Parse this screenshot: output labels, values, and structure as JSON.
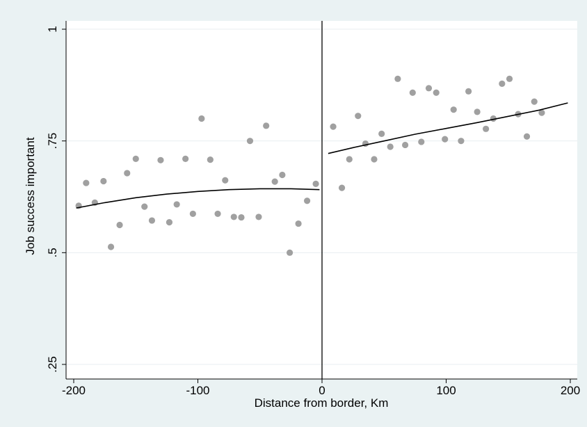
{
  "chart_data": {
    "type": "scatter",
    "title": "",
    "xlabel": "Distance from border, Km",
    "ylabel": "Job success important",
    "xlim": [
      -200,
      200
    ],
    "ylim": [
      0.25,
      1
    ],
    "x_ticks": [
      {
        "value": -200,
        "label": "-200"
      },
      {
        "value": -100,
        "label": "-100"
      },
      {
        "value": 0,
        "label": "0"
      },
      {
        "value": 100,
        "label": "100"
      },
      {
        "value": 200,
        "label": "200"
      }
    ],
    "y_ticks": [
      {
        "value": 0.25,
        "label": ".25"
      },
      {
        "value": 0.5,
        "label": ".5"
      },
      {
        "value": 0.75,
        "label": ".75"
      },
      {
        "value": 1,
        "label": "1"
      }
    ],
    "grid": true,
    "vertical_line_x": 0,
    "colors": {
      "outer_background": "#eaf2f3",
      "plot_background": "#ffffff",
      "grid": "#e8eef0",
      "points": "#a0a0a0",
      "fit_line": "#000000"
    },
    "points": [
      {
        "x": -196,
        "y": 0.605
      },
      {
        "x": -190,
        "y": 0.656
      },
      {
        "x": -183,
        "y": 0.612
      },
      {
        "x": -176,
        "y": 0.66
      },
      {
        "x": -170,
        "y": 0.513
      },
      {
        "x": -163,
        "y": 0.562
      },
      {
        "x": -157,
        "y": 0.678
      },
      {
        "x": -150,
        "y": 0.71
      },
      {
        "x": -143,
        "y": 0.603
      },
      {
        "x": -137,
        "y": 0.572
      },
      {
        "x": -130,
        "y": 0.707
      },
      {
        "x": -123,
        "y": 0.568
      },
      {
        "x": -117,
        "y": 0.608
      },
      {
        "x": -110,
        "y": 0.71
      },
      {
        "x": -104,
        "y": 0.587
      },
      {
        "x": -97,
        "y": 0.8
      },
      {
        "x": -90,
        "y": 0.708
      },
      {
        "x": -84,
        "y": 0.587
      },
      {
        "x": -78,
        "y": 0.662
      },
      {
        "x": -71,
        "y": 0.58
      },
      {
        "x": -65,
        "y": 0.579
      },
      {
        "x": -58,
        "y": 0.75
      },
      {
        "x": -51,
        "y": 0.58
      },
      {
        "x": -45,
        "y": 0.784
      },
      {
        "x": -38,
        "y": 0.659
      },
      {
        "x": -32,
        "y": 0.674
      },
      {
        "x": -26,
        "y": 0.5
      },
      {
        "x": -19,
        "y": 0.565
      },
      {
        "x": -12,
        "y": 0.616
      },
      {
        "x": -5,
        "y": 0.654
      },
      {
        "x": 9,
        "y": 0.782
      },
      {
        "x": 16,
        "y": 0.645
      },
      {
        "x": 22,
        "y": 0.709
      },
      {
        "x": 29,
        "y": 0.806
      },
      {
        "x": 35,
        "y": 0.744
      },
      {
        "x": 42,
        "y": 0.709
      },
      {
        "x": 48,
        "y": 0.766
      },
      {
        "x": 55,
        "y": 0.737
      },
      {
        "x": 61,
        "y": 0.889
      },
      {
        "x": 67,
        "y": 0.741
      },
      {
        "x": 73,
        "y": 0.858
      },
      {
        "x": 80,
        "y": 0.748
      },
      {
        "x": 86,
        "y": 0.868
      },
      {
        "x": 92,
        "y": 0.858
      },
      {
        "x": 99,
        "y": 0.754
      },
      {
        "x": 106,
        "y": 0.82
      },
      {
        "x": 112,
        "y": 0.75
      },
      {
        "x": 118,
        "y": 0.861
      },
      {
        "x": 125,
        "y": 0.815
      },
      {
        "x": 132,
        "y": 0.777
      },
      {
        "x": 138,
        "y": 0.8
      },
      {
        "x": 145,
        "y": 0.878
      },
      {
        "x": 151,
        "y": 0.889
      },
      {
        "x": 158,
        "y": 0.81
      },
      {
        "x": 165,
        "y": 0.76
      },
      {
        "x": 171,
        "y": 0.838
      },
      {
        "x": 177,
        "y": 0.813
      }
    ],
    "fit_lines": [
      {
        "side": "left",
        "x": [
          -198,
          -175,
          -150,
          -125,
          -100,
          -75,
          -50,
          -25,
          -2
        ],
        "y": [
          0.6,
          0.612,
          0.623,
          0.631,
          0.637,
          0.641,
          0.643,
          0.643,
          0.641
        ]
      },
      {
        "side": "right",
        "x": [
          5,
          25,
          50,
          75,
          100,
          125,
          150,
          175,
          198
        ],
        "y": [
          0.722,
          0.735,
          0.75,
          0.765,
          0.778,
          0.791,
          0.805,
          0.819,
          0.835
        ]
      }
    ]
  }
}
